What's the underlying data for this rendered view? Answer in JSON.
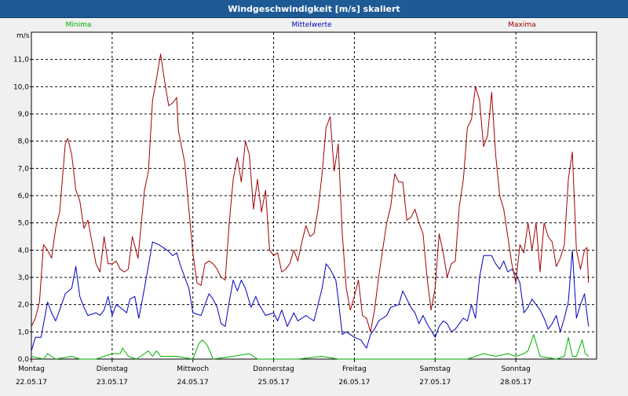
{
  "window": {
    "title": "Windgeschwindigkeit [m/s] skaliert"
  },
  "colors": {
    "titlebar": "#1e5b96",
    "minima": "#00b000",
    "mittelwerte": "#0000c0",
    "maxima": "#a00000"
  },
  "chart_data": {
    "type": "line",
    "title": "Windgeschwindigkeit [m/s] skaliert",
    "ylabel": "m/s",
    "xlabel": "",
    "ylim": [
      0,
      12
    ],
    "xlim": [
      0,
      7
    ],
    "grid": true,
    "legend_position": "top",
    "yticks": [
      "0,0",
      "1,0",
      "2,0",
      "3,0",
      "4,0",
      "5,0",
      "6,0",
      "7,0",
      "8,0",
      "9,0",
      "10,0",
      "11,0"
    ],
    "days": [
      {
        "name": "Montag",
        "date": "22.05.17"
      },
      {
        "name": "Dienstag",
        "date": "23.05.17"
      },
      {
        "name": "Mittwoch",
        "date": "24.05.17"
      },
      {
        "name": "Donnerstag",
        "date": "25.05.17"
      },
      {
        "name": "Freitag",
        "date": "26.05.17"
      },
      {
        "name": "Samstag",
        "date": "27.05.17"
      },
      {
        "name": "Sonntag",
        "date": "28.05.17"
      }
    ],
    "series": [
      {
        "name": "Minima",
        "color": "#00b000",
        "points": [
          [
            0,
            0.1
          ],
          [
            0.15,
            0.0
          ],
          [
            0.2,
            0.2
          ],
          [
            0.3,
            0.0
          ],
          [
            0.5,
            0.1
          ],
          [
            0.6,
            0.0
          ],
          [
            0.8,
            0.0
          ],
          [
            0.9,
            0.1
          ],
          [
            1.0,
            0.2
          ],
          [
            1.1,
            0.2
          ],
          [
            1.13,
            0.4
          ],
          [
            1.2,
            0.1
          ],
          [
            1.3,
            0.0
          ],
          [
            1.45,
            0.3
          ],
          [
            1.5,
            0.1
          ],
          [
            1.55,
            0.3
          ],
          [
            1.6,
            0.1
          ],
          [
            1.8,
            0.1
          ],
          [
            2.0,
            0.0
          ],
          [
            2.08,
            0.6
          ],
          [
            2.12,
            0.7
          ],
          [
            2.18,
            0.5
          ],
          [
            2.25,
            0.0
          ],
          [
            2.5,
            0.1
          ],
          [
            2.7,
            0.2
          ],
          [
            2.8,
            0.0
          ],
          [
            3.3,
            0.0
          ],
          [
            3.6,
            0.1
          ],
          [
            3.8,
            0.0
          ],
          [
            4.2,
            0.0
          ],
          [
            4.5,
            0.0
          ],
          [
            4.7,
            0.0
          ],
          [
            5.0,
            0.0
          ],
          [
            5.4,
            0.0
          ],
          [
            5.5,
            0.1
          ],
          [
            5.6,
            0.2
          ],
          [
            5.75,
            0.1
          ],
          [
            5.9,
            0.2
          ],
          [
            6.0,
            0.1
          ],
          [
            6.1,
            0.2
          ],
          [
            6.15,
            0.3
          ],
          [
            6.22,
            0.9
          ],
          [
            6.3,
            0.1
          ],
          [
            6.5,
            0.0
          ],
          [
            6.6,
            0.1
          ],
          [
            6.65,
            0.8
          ],
          [
            6.7,
            0.1
          ],
          [
            6.75,
            0.1
          ],
          [
            6.82,
            0.7
          ],
          [
            6.86,
            0.2
          ],
          [
            6.9,
            0.1
          ]
        ]
      },
      {
        "name": "Mittelwerte",
        "color": "#0000c0",
        "points": [
          [
            0,
            0.3
          ],
          [
            0.05,
            0.8
          ],
          [
            0.12,
            0.8
          ],
          [
            0.2,
            2.1
          ],
          [
            0.25,
            1.7
          ],
          [
            0.3,
            1.4
          ],
          [
            0.35,
            1.8
          ],
          [
            0.42,
            2.4
          ],
          [
            0.5,
            2.6
          ],
          [
            0.55,
            3.4
          ],
          [
            0.6,
            2.3
          ],
          [
            0.65,
            1.9
          ],
          [
            0.7,
            1.6
          ],
          [
            0.8,
            1.7
          ],
          [
            0.85,
            1.6
          ],
          [
            0.9,
            1.8
          ],
          [
            0.95,
            2.3
          ],
          [
            1.0,
            1.6
          ],
          [
            1.05,
            2.0
          ],
          [
            1.1,
            1.9
          ],
          [
            1.18,
            1.7
          ],
          [
            1.22,
            2.2
          ],
          [
            1.28,
            2.3
          ],
          [
            1.33,
            1.5
          ],
          [
            1.4,
            2.6
          ],
          [
            1.5,
            4.3
          ],
          [
            1.58,
            4.2
          ],
          [
            1.68,
            4.0
          ],
          [
            1.75,
            3.8
          ],
          [
            1.8,
            3.9
          ],
          [
            1.85,
            3.4
          ],
          [
            1.9,
            3.0
          ],
          [
            1.95,
            2.6
          ],
          [
            2.0,
            1.7
          ],
          [
            2.1,
            1.6
          ],
          [
            2.15,
            2.0
          ],
          [
            2.2,
            2.4
          ],
          [
            2.25,
            2.2
          ],
          [
            2.3,
            1.9
          ],
          [
            2.35,
            1.3
          ],
          [
            2.4,
            1.2
          ],
          [
            2.45,
            2.1
          ],
          [
            2.5,
            2.9
          ],
          [
            2.55,
            2.5
          ],
          [
            2.6,
            2.9
          ],
          [
            2.65,
            2.6
          ],
          [
            2.72,
            1.9
          ],
          [
            2.78,
            2.3
          ],
          [
            2.82,
            2.0
          ],
          [
            2.9,
            1.6
          ],
          [
            3.0,
            1.7
          ],
          [
            3.05,
            1.4
          ],
          [
            3.1,
            1.8
          ],
          [
            3.17,
            1.2
          ],
          [
            3.25,
            1.7
          ],
          [
            3.3,
            1.4
          ],
          [
            3.4,
            1.6
          ],
          [
            3.5,
            1.4
          ],
          [
            3.6,
            2.6
          ],
          [
            3.65,
            3.5
          ],
          [
            3.7,
            3.3
          ],
          [
            3.77,
            2.9
          ],
          [
            3.8,
            2.2
          ],
          [
            3.85,
            0.9
          ],
          [
            3.9,
            1.0
          ],
          [
            4.0,
            0.8
          ],
          [
            4.08,
            0.7
          ],
          [
            4.15,
            0.4
          ],
          [
            4.2,
            0.9
          ],
          [
            4.25,
            1.1
          ],
          [
            4.3,
            1.4
          ],
          [
            4.4,
            1.6
          ],
          [
            4.45,
            1.9
          ],
          [
            4.55,
            2.0
          ],
          [
            4.6,
            2.5
          ],
          [
            4.65,
            2.2
          ],
          [
            4.7,
            1.9
          ],
          [
            4.75,
            1.7
          ],
          [
            4.8,
            1.3
          ],
          [
            4.85,
            1.6
          ],
          [
            4.9,
            1.3
          ],
          [
            5.0,
            0.8
          ],
          [
            5.05,
            1.2
          ],
          [
            5.1,
            1.4
          ],
          [
            5.15,
            1.3
          ],
          [
            5.2,
            1.0
          ],
          [
            5.25,
            1.1
          ],
          [
            5.3,
            1.3
          ],
          [
            5.35,
            1.5
          ],
          [
            5.4,
            1.4
          ],
          [
            5.45,
            2.0
          ],
          [
            5.5,
            1.5
          ],
          [
            5.55,
            3.0
          ],
          [
            5.6,
            3.8
          ],
          [
            5.7,
            3.8
          ],
          [
            5.75,
            3.5
          ],
          [
            5.8,
            3.3
          ],
          [
            5.85,
            3.6
          ],
          [
            5.9,
            3.2
          ],
          [
            5.95,
            3.3
          ],
          [
            6.0,
            3.1
          ],
          [
            6.05,
            2.8
          ],
          [
            6.1,
            1.7
          ],
          [
            6.15,
            1.9
          ],
          [
            6.2,
            2.2
          ],
          [
            6.25,
            2.0
          ],
          [
            6.3,
            1.8
          ],
          [
            6.35,
            1.5
          ],
          [
            6.4,
            1.1
          ],
          [
            6.45,
            1.3
          ],
          [
            6.5,
            1.6
          ],
          [
            6.55,
            1.0
          ],
          [
            6.6,
            1.5
          ],
          [
            6.65,
            2.1
          ],
          [
            6.7,
            4.0
          ],
          [
            6.75,
            1.5
          ],
          [
            6.8,
            2.0
          ],
          [
            6.85,
            2.4
          ],
          [
            6.9,
            1.2
          ]
        ]
      },
      {
        "name": "Maxima",
        "color": "#a00000",
        "points": [
          [
            0,
            1.2
          ],
          [
            0.05,
            1.5
          ],
          [
            0.1,
            2.1
          ],
          [
            0.15,
            4.2
          ],
          [
            0.2,
            4.0
          ],
          [
            0.25,
            3.7
          ],
          [
            0.3,
            4.8
          ],
          [
            0.35,
            5.4
          ],
          [
            0.42,
            7.9
          ],
          [
            0.45,
            8.1
          ],
          [
            0.5,
            7.5
          ],
          [
            0.55,
            6.2
          ],
          [
            0.6,
            5.8
          ],
          [
            0.65,
            4.8
          ],
          [
            0.7,
            5.1
          ],
          [
            0.75,
            4.3
          ],
          [
            0.8,
            3.5
          ],
          [
            0.85,
            3.2
          ],
          [
            0.9,
            4.5
          ],
          [
            0.95,
            3.5
          ],
          [
            1.0,
            3.5
          ],
          [
            1.05,
            3.6
          ],
          [
            1.1,
            3.3
          ],
          [
            1.15,
            3.2
          ],
          [
            1.2,
            3.3
          ],
          [
            1.25,
            4.5
          ],
          [
            1.32,
            3.7
          ],
          [
            1.4,
            6.2
          ],
          [
            1.45,
            6.9
          ],
          [
            1.5,
            9.5
          ],
          [
            1.55,
            10.3
          ],
          [
            1.6,
            11.2
          ],
          [
            1.65,
            10.2
          ],
          [
            1.7,
            9.3
          ],
          [
            1.75,
            9.4
          ],
          [
            1.8,
            9.6
          ],
          [
            1.82,
            8.4
          ],
          [
            1.9,
            7.2
          ],
          [
            1.95,
            5.5
          ],
          [
            2.0,
            3.9
          ],
          [
            2.05,
            2.8
          ],
          [
            2.1,
            2.7
          ],
          [
            2.15,
            3.5
          ],
          [
            2.2,
            3.6
          ],
          [
            2.25,
            3.5
          ],
          [
            2.3,
            3.3
          ],
          [
            2.35,
            3.0
          ],
          [
            2.4,
            2.9
          ],
          [
            2.45,
            5.0
          ],
          [
            2.5,
            6.6
          ],
          [
            2.55,
            7.4
          ],
          [
            2.6,
            6.5
          ],
          [
            2.65,
            8.0
          ],
          [
            2.7,
            7.5
          ],
          [
            2.75,
            5.5
          ],
          [
            2.8,
            6.6
          ],
          [
            2.85,
            5.4
          ],
          [
            2.9,
            6.2
          ],
          [
            2.95,
            4.0
          ],
          [
            3.0,
            3.8
          ],
          [
            3.05,
            3.9
          ],
          [
            3.1,
            3.2
          ],
          [
            3.15,
            3.3
          ],
          [
            3.2,
            3.5
          ],
          [
            3.25,
            4.0
          ],
          [
            3.3,
            3.6
          ],
          [
            3.35,
            4.3
          ],
          [
            3.4,
            4.9
          ],
          [
            3.45,
            4.5
          ],
          [
            3.5,
            4.6
          ],
          [
            3.55,
            5.5
          ],
          [
            3.6,
            6.8
          ],
          [
            3.65,
            8.5
          ],
          [
            3.7,
            8.9
          ],
          [
            3.75,
            6.9
          ],
          [
            3.8,
            7.9
          ],
          [
            3.85,
            4.6
          ],
          [
            3.9,
            2.6
          ],
          [
            3.95,
            1.8
          ],
          [
            4.0,
            2.3
          ],
          [
            4.05,
            2.9
          ],
          [
            4.1,
            1.6
          ],
          [
            4.15,
            1.5
          ],
          [
            4.2,
            1.0
          ],
          [
            4.25,
            1.8
          ],
          [
            4.3,
            3.0
          ],
          [
            4.35,
            4.0
          ],
          [
            4.4,
            5.0
          ],
          [
            4.45,
            5.6
          ],
          [
            4.5,
            6.8
          ],
          [
            4.55,
            6.5
          ],
          [
            4.6,
            6.5
          ],
          [
            4.65,
            5.1
          ],
          [
            4.7,
            5.2
          ],
          [
            4.75,
            5.5
          ],
          [
            4.8,
            5.0
          ],
          [
            4.85,
            4.6
          ],
          [
            4.9,
            3.0
          ],
          [
            4.95,
            1.8
          ],
          [
            5.0,
            2.6
          ],
          [
            5.05,
            4.6
          ],
          [
            5.1,
            3.9
          ],
          [
            5.15,
            3.0
          ],
          [
            5.2,
            3.5
          ],
          [
            5.25,
            3.6
          ],
          [
            5.3,
            5.6
          ],
          [
            5.35,
            6.6
          ],
          [
            5.4,
            8.5
          ],
          [
            5.45,
            8.8
          ],
          [
            5.5,
            10.0
          ],
          [
            5.55,
            9.5
          ],
          [
            5.6,
            7.8
          ],
          [
            5.65,
            8.2
          ],
          [
            5.7,
            9.8
          ],
          [
            5.75,
            7.5
          ],
          [
            5.8,
            6.0
          ],
          [
            5.85,
            5.5
          ],
          [
            5.9,
            4.5
          ],
          [
            5.95,
            3.5
          ],
          [
            6.0,
            2.8
          ],
          [
            6.05,
            4.2
          ],
          [
            6.1,
            3.9
          ],
          [
            6.15,
            5.0
          ],
          [
            6.2,
            4.0
          ],
          [
            6.25,
            5.0
          ],
          [
            6.3,
            3.2
          ],
          [
            6.35,
            5.0
          ],
          [
            6.4,
            4.5
          ],
          [
            6.45,
            4.3
          ],
          [
            6.5,
            3.4
          ],
          [
            6.55,
            3.7
          ],
          [
            6.6,
            4.2
          ],
          [
            6.65,
            6.6
          ],
          [
            6.7,
            7.6
          ],
          [
            6.75,
            4.0
          ],
          [
            6.8,
            3.3
          ],
          [
            6.85,
            4.0
          ],
          [
            6.88,
            4.1
          ],
          [
            6.9,
            2.8
          ]
        ]
      }
    ]
  }
}
